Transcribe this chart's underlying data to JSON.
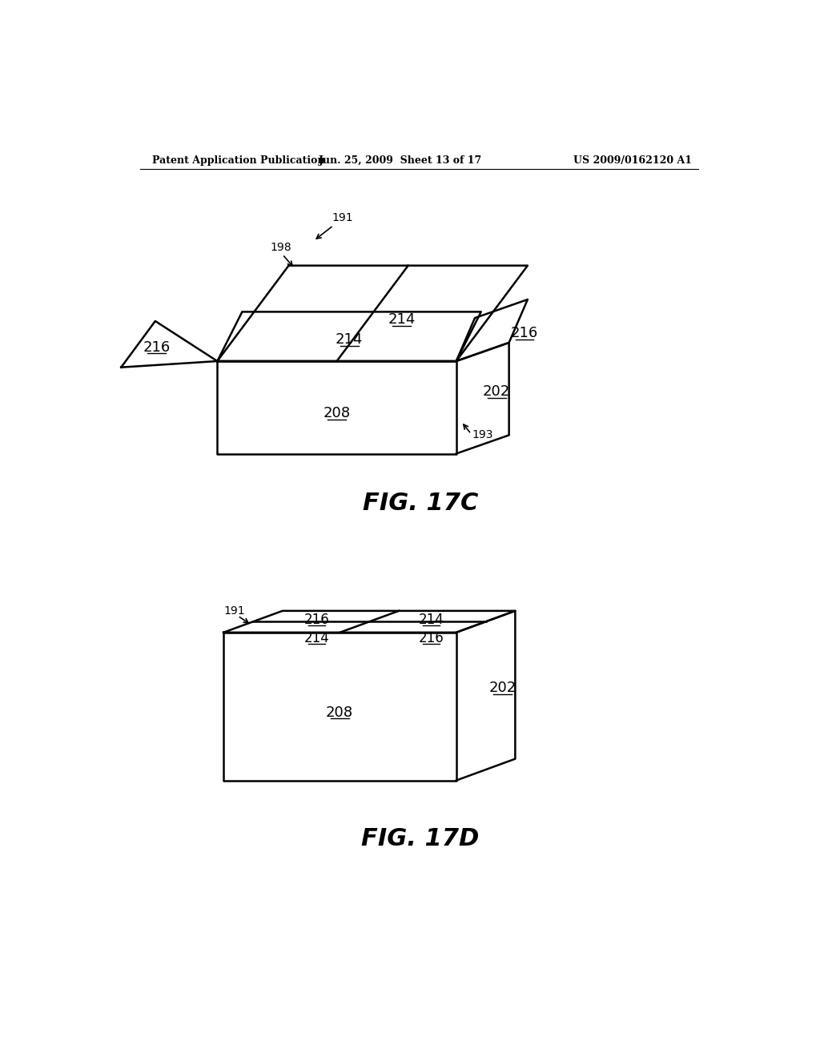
{
  "bg_color": "#ffffff",
  "line_color": "#000000",
  "header_left": "Patent Application Publication",
  "header_mid": "Jun. 25, 2009  Sheet 13 of 17",
  "header_right": "US 2009/0162120 A1",
  "lw": 1.8
}
